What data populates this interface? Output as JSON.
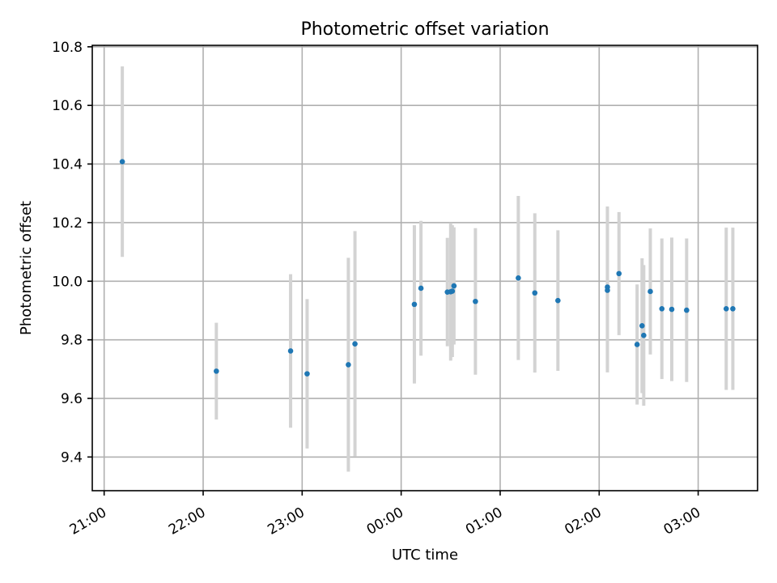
{
  "chart_data": {
    "type": "scatter",
    "title": "Photometric offset variation",
    "xlabel": "UTC time",
    "ylabel": "Photometric offset",
    "x_tick_labels": [
      "21:00",
      "22:00",
      "23:00",
      "00:00",
      "01:00",
      "02:00",
      "03:00"
    ],
    "x_start_time": "21:00",
    "xlim_hours": [
      -0.12,
      6.6
    ],
    "ylim": [
      9.285,
      10.805
    ],
    "y_ticks": [
      9.4,
      9.6,
      9.8,
      10.0,
      10.2,
      10.4,
      10.6,
      10.8
    ],
    "y_tick_labels": [
      "9.4",
      "9.6",
      "9.8",
      "10.0",
      "10.2",
      "10.4",
      "10.6",
      "10.8"
    ],
    "grid": true,
    "colors": {
      "points": "#1f77b4",
      "error_bars": "#d3d3d3"
    },
    "points": [
      {
        "x": "21:11",
        "y": 10.408,
        "err": 0.325
      },
      {
        "x": "22:08",
        "y": 9.693,
        "err": 0.165
      },
      {
        "x": "22:53",
        "y": 9.762,
        "err": 0.262
      },
      {
        "x": "23:03",
        "y": 9.684,
        "err": 0.255
      },
      {
        "x": "23:28",
        "y": 9.715,
        "err": 0.365
      },
      {
        "x": "23:32",
        "y": 9.786,
        "err": 0.385
      },
      {
        "x": "00:08",
        "y": 9.921,
        "err": 0.27
      },
      {
        "x": "00:12",
        "y": 9.976,
        "err": 0.23
      },
      {
        "x": "00:28",
        "y": 9.963,
        "err": 0.185
      },
      {
        "x": "00:30",
        "y": 9.964,
        "err": 0.235
      },
      {
        "x": "00:31",
        "y": 9.966,
        "err": 0.225
      },
      {
        "x": "00:32",
        "y": 9.984,
        "err": 0.2
      },
      {
        "x": "00:45",
        "y": 9.931,
        "err": 0.25
      },
      {
        "x": "01:11",
        "y": 10.011,
        "err": 0.28
      },
      {
        "x": "01:21",
        "y": 9.96,
        "err": 0.272
      },
      {
        "x": "01:35",
        "y": 9.934,
        "err": 0.24
      },
      {
        "x": "02:05",
        "y": 9.969,
        "err": 0.28
      },
      {
        "x": "02:05",
        "y": 9.98,
        "err": 0.275
      },
      {
        "x": "02:12",
        "y": 10.026,
        "err": 0.21
      },
      {
        "x": "02:23",
        "y": 9.784,
        "err": 0.205
      },
      {
        "x": "02:26",
        "y": 9.848,
        "err": 0.23
      },
      {
        "x": "02:27",
        "y": 9.815,
        "err": 0.24
      },
      {
        "x": "02:31",
        "y": 9.965,
        "err": 0.215
      },
      {
        "x": "02:38",
        "y": 9.906,
        "err": 0.24
      },
      {
        "x": "02:44",
        "y": 9.904,
        "err": 0.245
      },
      {
        "x": "02:53",
        "y": 9.901,
        "err": 0.245
      },
      {
        "x": "03:17",
        "y": 9.906,
        "err": 0.277
      },
      {
        "x": "03:21",
        "y": 9.906,
        "err": 0.277
      }
    ]
  }
}
